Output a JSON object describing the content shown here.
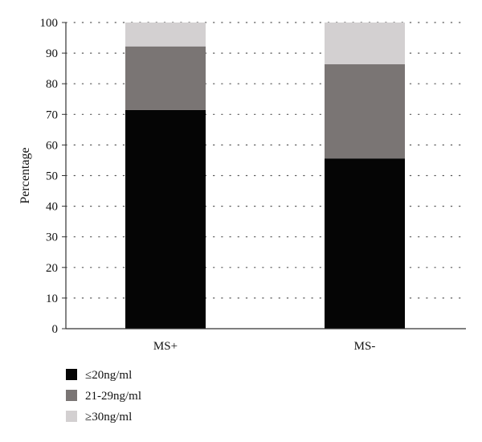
{
  "chart_data": {
    "type": "bar",
    "stacked": true,
    "title": "",
    "xlabel": "",
    "ylabel": "Percentage",
    "ylim": [
      0,
      100
    ],
    "yticks": [
      0,
      10,
      20,
      30,
      40,
      50,
      60,
      70,
      80,
      90,
      100
    ],
    "grid": true,
    "legend_position": "bottom-left",
    "categories": [
      "MS+",
      "MS-"
    ],
    "series": [
      {
        "name": "≤20ng/ml",
        "color": "#050505",
        "values": [
          71.4,
          55.6
        ]
      },
      {
        "name": "21-29ng/ml",
        "color": "#7a7574",
        "values": [
          20.8,
          30.8
        ]
      },
      {
        "name": "≥30ng/ml",
        "color": "#d3d0d1",
        "values": [
          7.8,
          13.6
        ]
      }
    ]
  }
}
